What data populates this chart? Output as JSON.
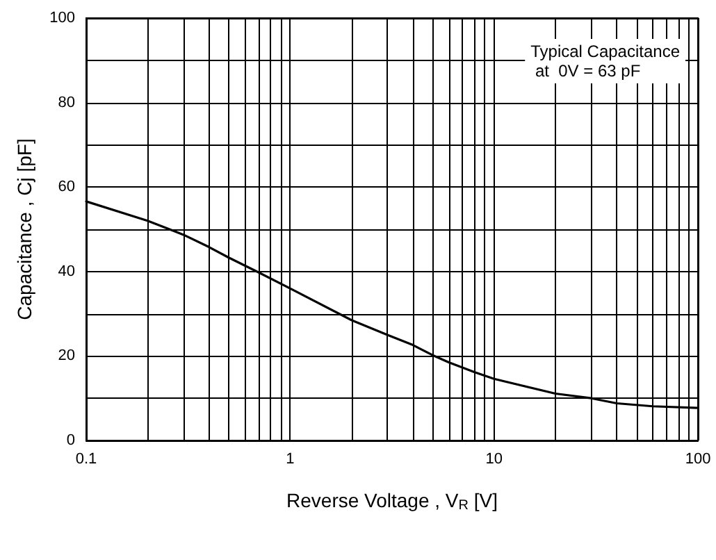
{
  "chart_data": {
    "type": "line",
    "xlabel": "Reverse Voltage , V$_{R}$ [V]",
    "ylabel": "Capacitance , Cj [pF]",
    "annotations": [
      "Typical Capacitance\n at  0V = 63 pF"
    ],
    "log": "x",
    "grid": true,
    "marker": "none",
    "line_style": "solid",
    "xlim": [
      0.1,
      100
    ],
    "xticks": [
      0.1,
      {
        "value": 0.2,
        "label": null
      },
      {
        "value": 0.3,
        "label": null
      },
      {
        "value": 0.4,
        "label": null
      },
      {
        "value": 0.5,
        "label": null
      },
      {
        "value": 0.6,
        "label": null
      },
      {
        "value": 0.7,
        "label": null
      },
      {
        "value": 0.8,
        "label": null
      },
      {
        "value": 0.9,
        "label": null
      },
      1,
      {
        "value": 2,
        "label": null
      },
      {
        "value": 3,
        "label": null
      },
      {
        "value": 4,
        "label": null
      },
      {
        "value": 5,
        "label": null
      },
      {
        "value": 6,
        "label": null
      },
      {
        "value": 7,
        "label": null
      },
      {
        "value": 8,
        "label": null
      },
      {
        "value": 9,
        "label": null
      },
      10,
      {
        "value": 20,
        "label": null
      },
      {
        "value": 30,
        "label": null
      },
      {
        "value": 40,
        "label": null
      },
      {
        "value": 50,
        "label": null
      },
      {
        "value": 60,
        "label": null
      },
      {
        "value": 70,
        "label": null
      },
      {
        "value": 80,
        "label": null
      },
      {
        "value": 90,
        "label": null
      },
      100
    ],
    "ylim": [
      0,
      100
    ],
    "yticks": [
      0,
      {
        "value": 10,
        "label": null
      },
      20,
      {
        "value": 30,
        "label": null
      },
      40,
      {
        "value": 50,
        "label": null
      },
      60,
      {
        "value": 70,
        "label": null
      },
      80,
      {
        "value": 90,
        "label": null
      },
      100
    ],
    "x": [
      0.1,
      0.2,
      0.3,
      0.4,
      0.5,
      0.7,
      1,
      2,
      3,
      4,
      5,
      6,
      8,
      10,
      20,
      30,
      40,
      60,
      100
    ],
    "series": [
      {
        "color": "#000000",
        "values": [
          56.6,
          52,
          48.7,
          45.8,
          43.3,
          39.8,
          36,
          28.5,
          25,
          22.6,
          20.2,
          18.5,
          16.2,
          14.6,
          11.1,
          10,
          8.8,
          8.1,
          7.7
        ]
      }
    ]
  }
}
